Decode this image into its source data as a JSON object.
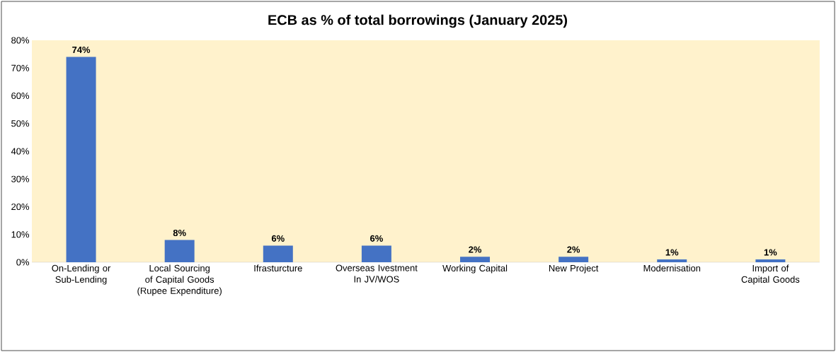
{
  "chart_data": {
    "type": "bar",
    "title": "ECB as % of total borrowings (January 2025)",
    "categories": [
      "On-Lending or Sub-Lending",
      "Local Sourcing of Capital Goods (Rupee Expenditure)",
      "Ifrasturcture",
      "Overseas Ivestment In JV/WOS",
      "Working Capital",
      "New Project",
      "Modernisation",
      "Import of Capital Goods"
    ],
    "values": [
      74,
      8,
      6,
      6,
      2,
      2,
      1,
      1
    ],
    "value_labels": [
      "74%",
      "8%",
      "6%",
      "6%",
      "2%",
      "2%",
      "1%",
      "1%"
    ],
    "color": "#4472c4",
    "ylim": [
      0,
      80
    ],
    "yticks": [
      {
        "value": 0,
        "label": "0%"
      },
      {
        "value": 10,
        "label": "10%"
      },
      {
        "value": 20,
        "label": "20%"
      },
      {
        "value": 30,
        "label": "30%"
      },
      {
        "value": 40,
        "label": "40%"
      },
      {
        "value": 50,
        "label": "50%"
      },
      {
        "value": 60,
        "label": "60%"
      },
      {
        "value": 70,
        "label": "70%"
      },
      {
        "value": 80,
        "label": "80%"
      }
    ]
  }
}
